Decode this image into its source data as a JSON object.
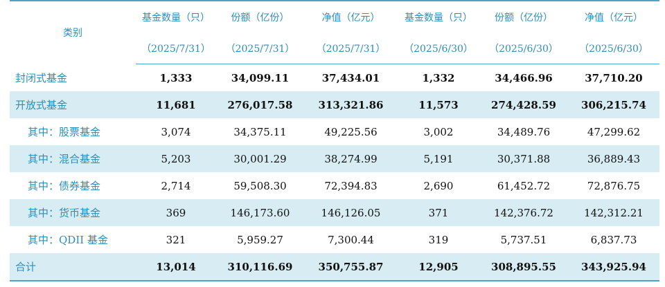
{
  "header": {
    "category": "类别",
    "columns": [
      {
        "title": "基金数量（只）",
        "date": "（2025/7/31）"
      },
      {
        "title": "份额（亿份）",
        "date": "（2025/7/31）"
      },
      {
        "title": "净值（亿元）",
        "date": "（2025/7/31）"
      },
      {
        "title": "基金数量（只）",
        "date": "（2025/6/30）"
      },
      {
        "title": "份额（亿份）",
        "date": "（2025/6/30）"
      },
      {
        "title": "净值（亿元）",
        "date": "（2025/6/30）"
      }
    ]
  },
  "rows": [
    {
      "label": "封闭式基金",
      "values": [
        "1,333",
        "34,099.11",
        "37,434.01",
        "1,332",
        "34,466.96",
        "37,710.20"
      ]
    },
    {
      "label": "开放式基金",
      "values": [
        "11,681",
        "276,017.58",
        "313,321.86",
        "11,573",
        "274,428.59",
        "306,215.74"
      ]
    },
    {
      "label": "其中：股票基金",
      "values": [
        "3,074",
        "34,375.11",
        "49,225.56",
        "3,002",
        "34,489.76",
        "47,299.62"
      ]
    },
    {
      "label": "其中：混合基金",
      "values": [
        "5,203",
        "30,001.29",
        "38,274.99",
        "5,191",
        "30,371.88",
        "36,889.43"
      ]
    },
    {
      "label": "其中：债券基金",
      "values": [
        "2,714",
        "59,508.30",
        "72,394.83",
        "2,690",
        "61,452.72",
        "72,876.75"
      ]
    },
    {
      "label": "其中：货币基金",
      "values": [
        "369",
        "146,173.60",
        "146,126.05",
        "371",
        "142,376.72",
        "142,312.21"
      ]
    },
    {
      "label": "其中：QDII 基金",
      "values": [
        "321",
        "5,959.27",
        "7,300.44",
        "319",
        "5,737.51",
        "6,837.73"
      ]
    },
    {
      "label": "合计",
      "values": [
        "13,014",
        "310,116.69",
        "350,755.87",
        "12,905",
        "308,895.55",
        "343,925.94"
      ]
    }
  ],
  "colors": {
    "accent": "#2a8fba",
    "rule": "#4fa3c4",
    "stripe": "#d8ecf4"
  }
}
